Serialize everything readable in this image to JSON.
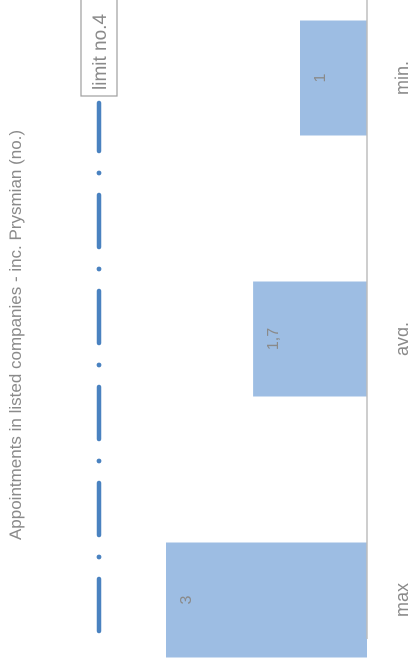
{
  "chart_data": {
    "type": "bar",
    "orientation": "horizontal",
    "categories": [
      "max",
      "avg.",
      "min."
    ],
    "values": [
      3,
      1.7,
      1
    ],
    "value_labels": [
      "3",
      "1,7",
      "1"
    ],
    "xlim": [
      0,
      4.6
    ],
    "grid": false,
    "title": "",
    "ylabel": "Appointments in listed companies - inc. Prysmian (no.)",
    "reference_line": {
      "value": 4,
      "label": "limit no.4"
    },
    "colors": {
      "bar": "#9dbde3",
      "limit_line": "#4a82c0",
      "text": "#8a8a8a",
      "axis": "#bdbdbd",
      "label_border": "#9e9e9e"
    }
  }
}
